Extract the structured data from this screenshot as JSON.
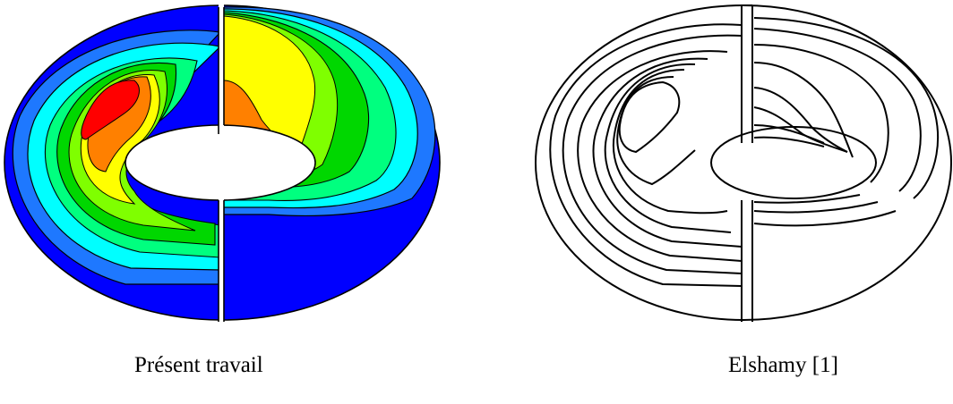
{
  "captions": {
    "left": "Présent travail",
    "right": "Elshamy [1]"
  },
  "colors": {
    "level_1": "#0000ff",
    "level_2": "#1e78ff",
    "level_3": "#00ffff",
    "level_4": "#00ff7f",
    "level_5": "#00d700",
    "level_6": "#7fff00",
    "level_7": "#ffff00",
    "level_8": "#ff8000",
    "level_9": "#ff0000",
    "contour_line": "#000000",
    "background": "#ffffff"
  }
}
